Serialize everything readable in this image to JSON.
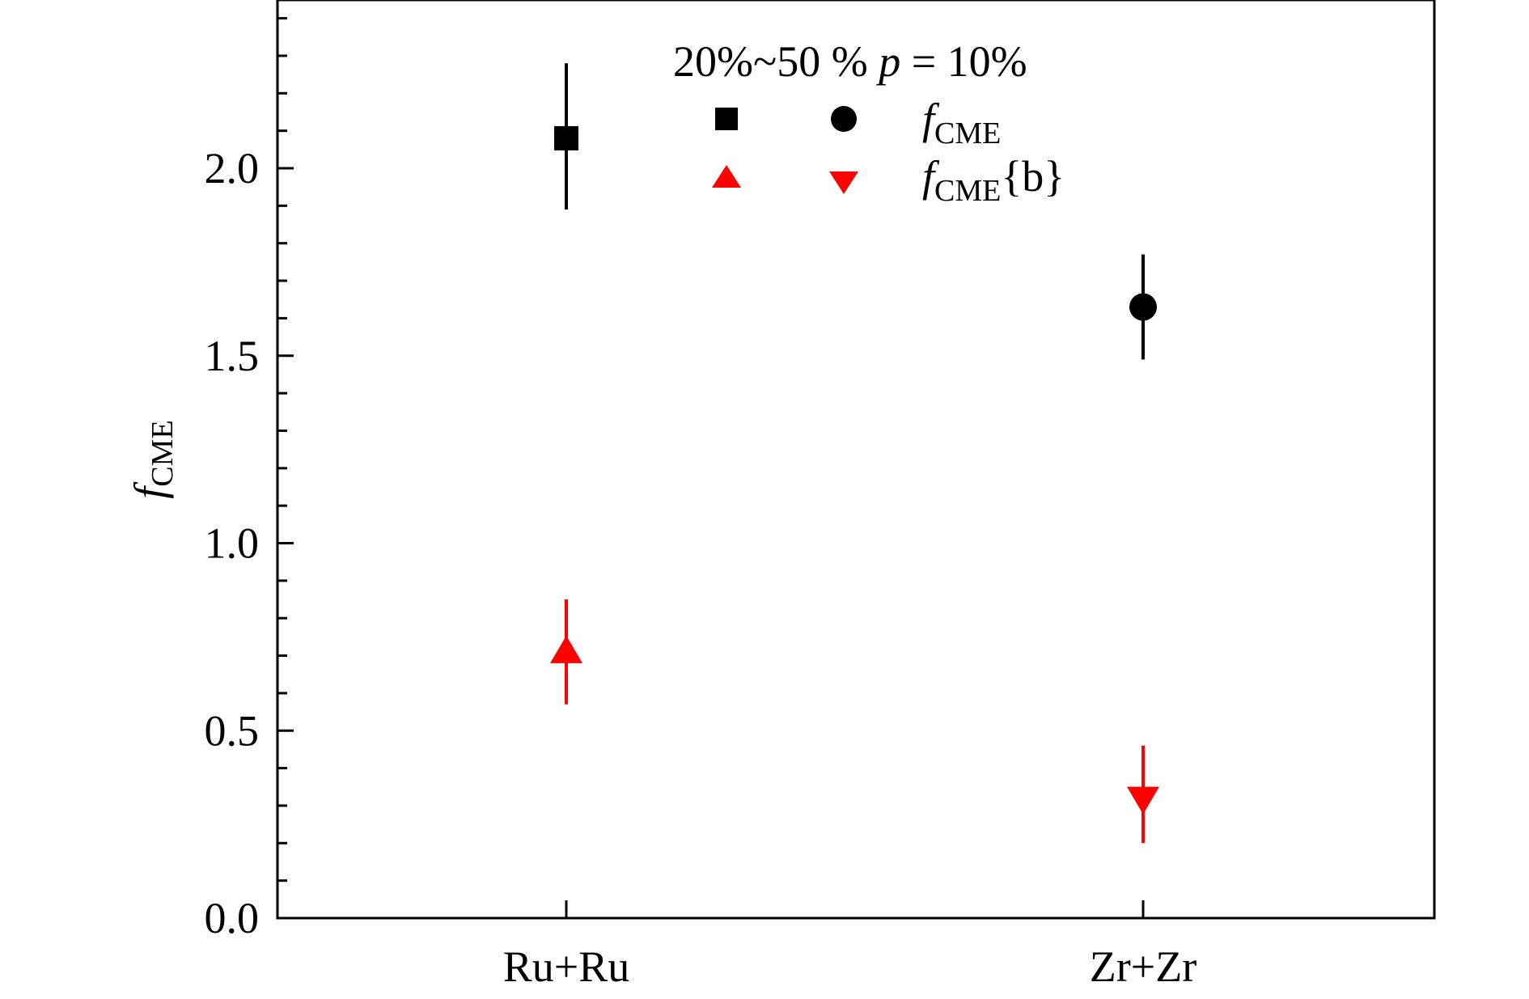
{
  "chart_data": {
    "type": "scatter",
    "title": "20%~50 % p = 10%",
    "title_parts": {
      "prefix": "20%~50 % ",
      "param": "p",
      "suffix": " = 10%"
    },
    "xlabel": "",
    "ylabel": {
      "main": "f",
      "sub": "CME"
    },
    "categories": [
      "Ru+Ru",
      "Zr+Zr"
    ],
    "ylim": [
      0,
      2.5
    ],
    "yticks": [
      0.0,
      0.5,
      1.0,
      1.5,
      2.0
    ],
    "ytick_labels": [
      "0.0",
      "0.5",
      "1.0",
      "1.5",
      "2.0"
    ],
    "grid": false,
    "legend_position": "top-center",
    "series": [
      {
        "name": {
          "main": "f",
          "sub": "CME",
          "suffix": ""
        },
        "color": "#000000",
        "markers": [
          "square",
          "circle"
        ],
        "points": [
          {
            "category": "Ru+Ru",
            "y": 2.08,
            "err_low": 1.89,
            "err_high": 2.28
          },
          {
            "category": "Zr+Zr",
            "y": 1.63,
            "err_low": 1.49,
            "err_high": 1.77
          }
        ]
      },
      {
        "name": {
          "main": "f",
          "sub": "CME",
          "suffix": "{b}"
        },
        "color": "#ff0000",
        "markers": [
          "triangle-up",
          "triangle-down"
        ],
        "points": [
          {
            "category": "Ru+Ru",
            "y": 0.71,
            "err_low": 0.57,
            "err_high": 0.85
          },
          {
            "category": "Zr+Zr",
            "y": 0.32,
            "err_low": 0.2,
            "err_high": 0.46
          }
        ]
      }
    ]
  }
}
